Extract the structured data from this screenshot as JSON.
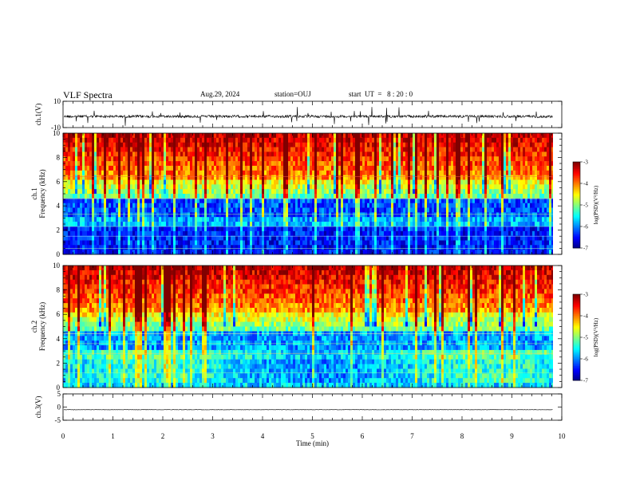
{
  "header": {
    "title": "VLF Spectra",
    "date": "Aug.29, 2024",
    "station": "station=OUJ",
    "start_time": "start  UT  =   8 : 20 : 0"
  },
  "chart_data": [
    {
      "id": "ch1-waveform",
      "type": "line",
      "ylabel": "ch.1(V)",
      "ylim": [
        -10,
        10
      ],
      "yticks": [
        "10",
        "-10"
      ],
      "baseline": -1.5,
      "trace_end_min": 9.82,
      "color": "#000000"
    },
    {
      "id": "ch1-spectrogram",
      "type": "heatmap",
      "ylabel": "ch.1",
      "ylabel2": "Frequency (kHz)",
      "ylim": [
        0,
        10
      ],
      "yticks": [
        "0",
        "2",
        "4",
        "6",
        "8",
        "10"
      ],
      "data_end_min": 9.82,
      "colorbar": {
        "label": "log(PSD)(V²/Hz)",
        "ticks": [
          "-3",
          "-4",
          "-5",
          "-6",
          "-7"
        ],
        "range": [
          -7,
          -3
        ]
      }
    },
    {
      "id": "ch2-spectrogram",
      "type": "heatmap",
      "ylabel": "ch.2",
      "ylabel2": "Frequency (kHz)",
      "ylim": [
        0,
        10
      ],
      "yticks": [
        "0",
        "2",
        "4",
        "6",
        "8",
        "10"
      ],
      "data_end_min": 9.82,
      "colorbar": {
        "label": "log(PSD)(V²/Hz)",
        "ticks": [
          "-3",
          "-4",
          "-5",
          "-6",
          "-7"
        ],
        "range": [
          -7,
          -3
        ]
      }
    },
    {
      "id": "ch3-waveform",
      "type": "line",
      "ylabel": "ch.3(V)",
      "ylim": [
        -5,
        5
      ],
      "yticks": [
        "5",
        "0",
        "-5"
      ],
      "baseline": -1,
      "trace_end_min": 9.82,
      "color": "#000000"
    }
  ],
  "xaxis": {
    "label": "Time  (min)",
    "range": [
      0,
      10
    ],
    "ticks": [
      "0",
      "1",
      "2",
      "3",
      "4",
      "5",
      "6",
      "7",
      "8",
      "9",
      "10"
    ]
  }
}
